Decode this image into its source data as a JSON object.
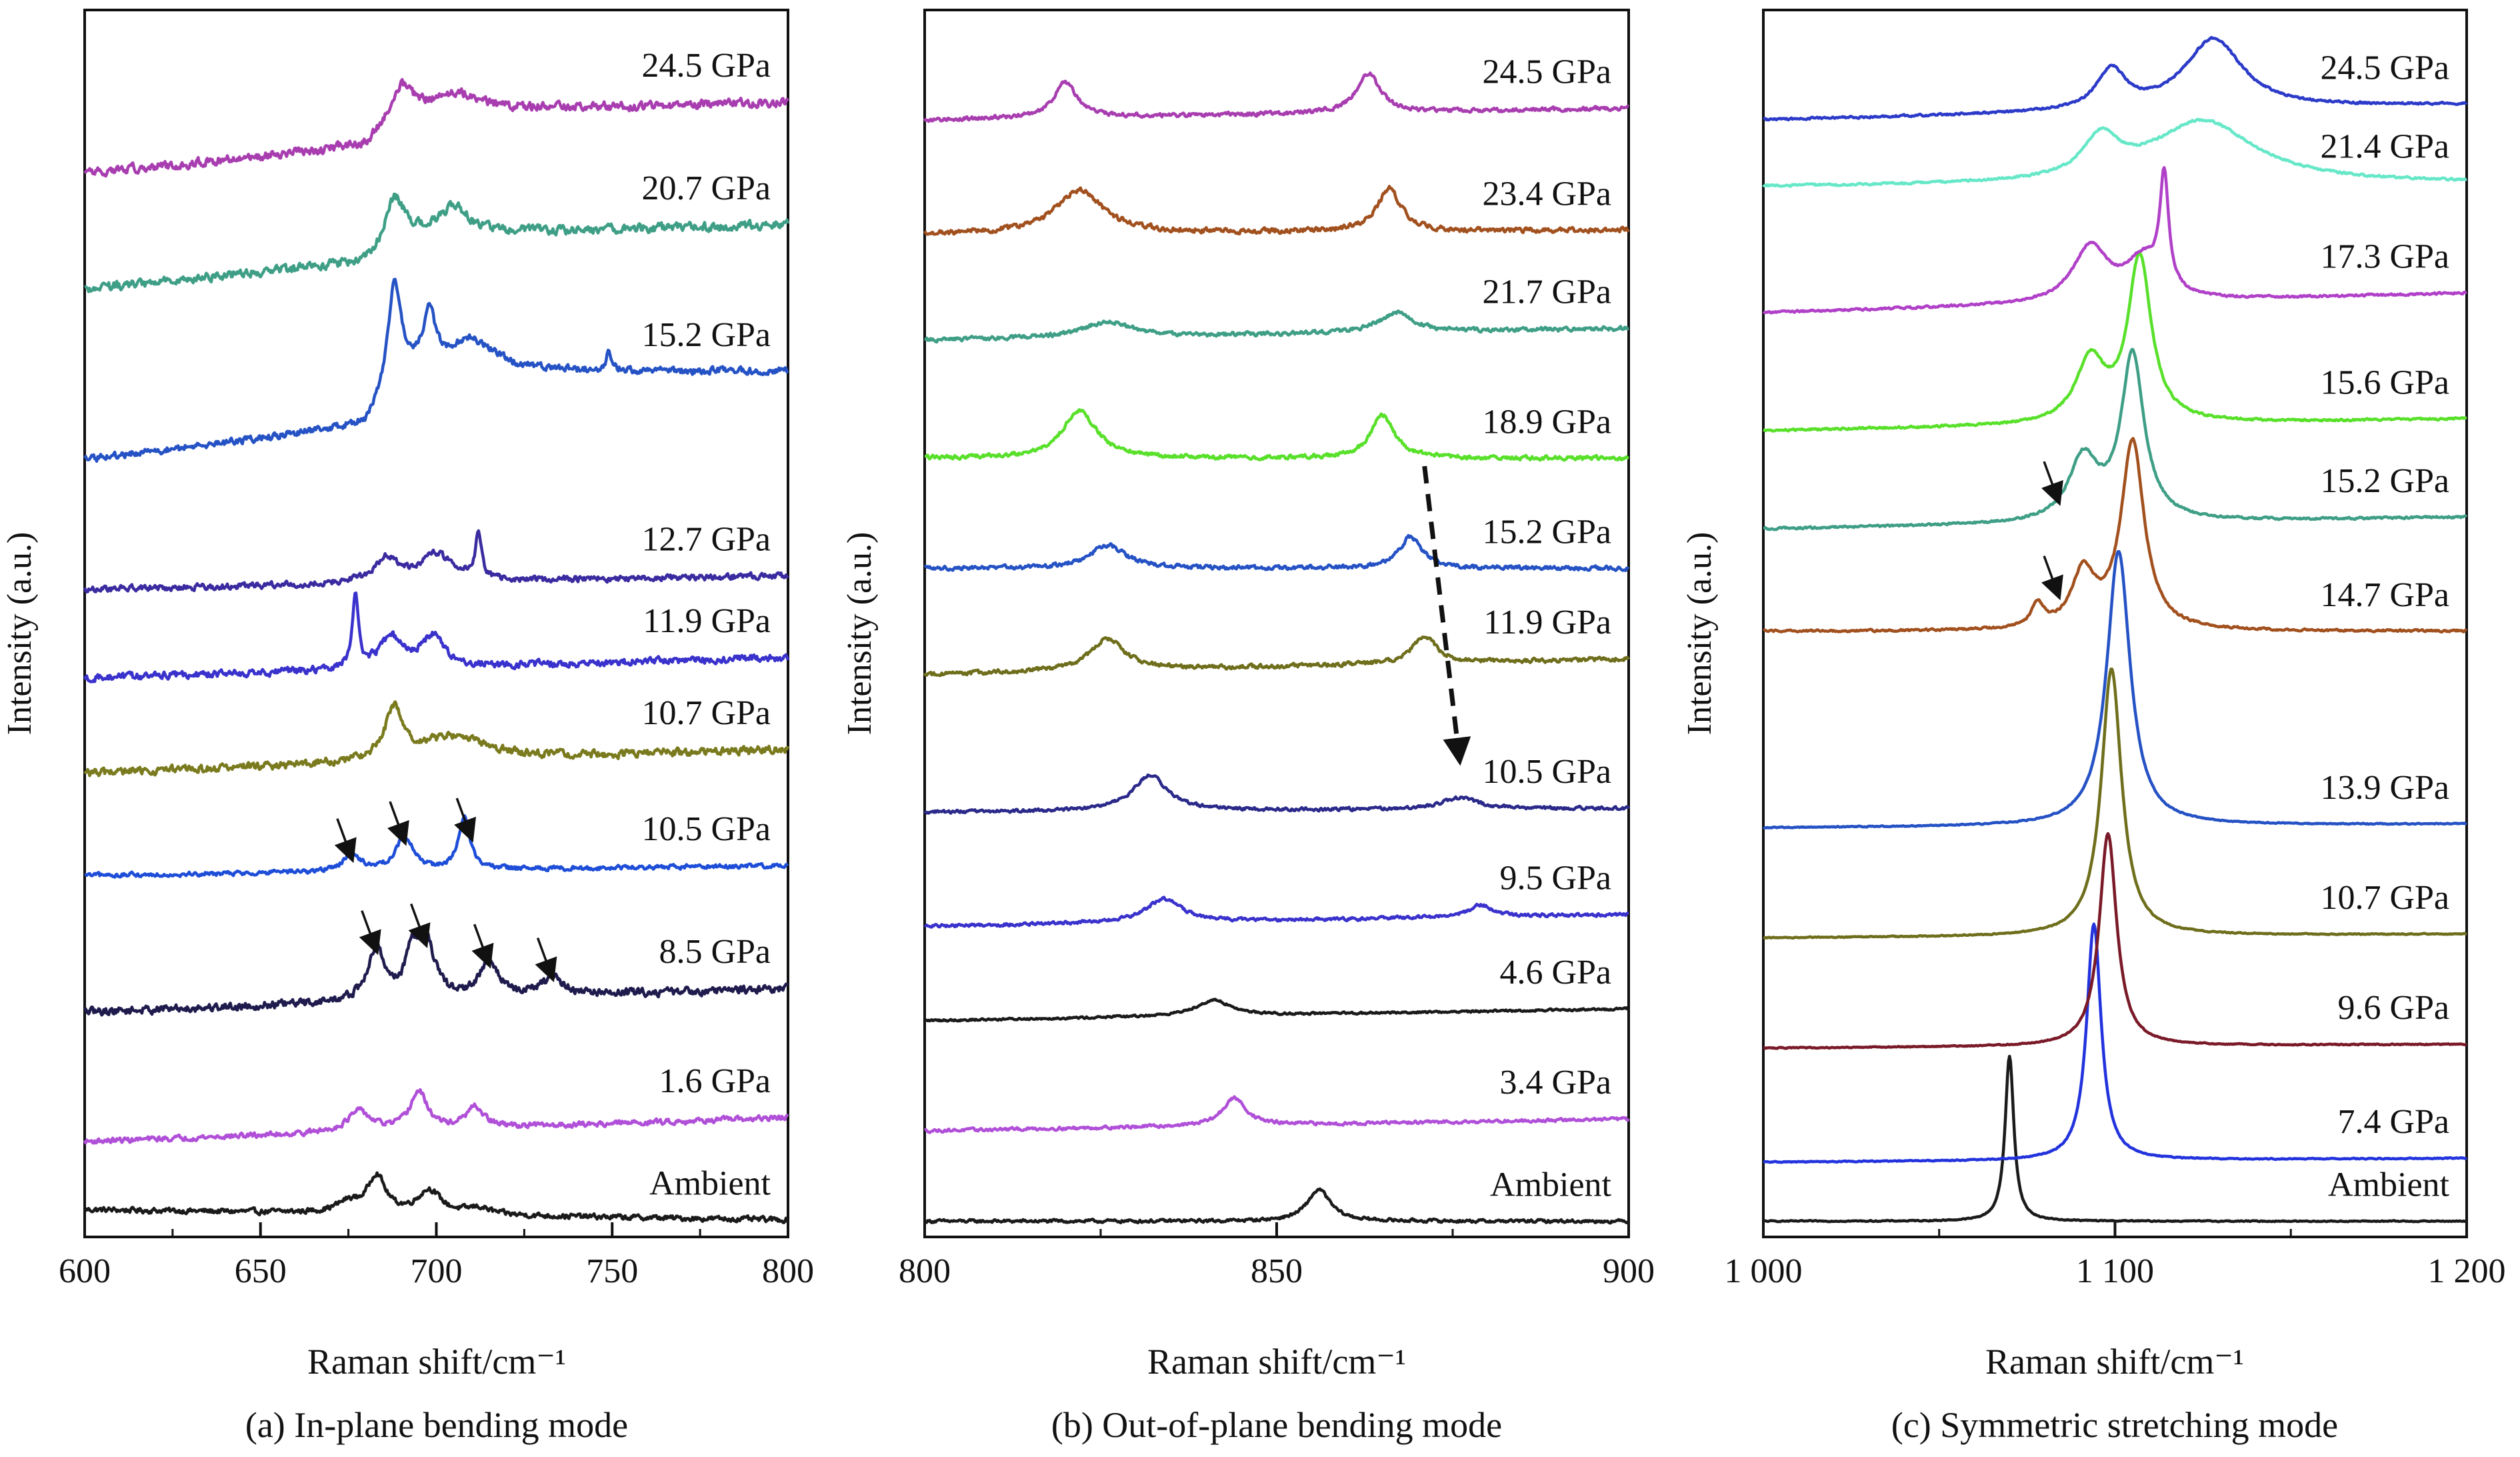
{
  "figure": {
    "ylabel": "Intensity (a.u.)",
    "xlabel": "Raman shift/cm⁻¹"
  },
  "chart_data": [
    {
      "type": "line",
      "caption": "(a) In-plane bending mode",
      "xlabel": "Raman shift/cm⁻¹",
      "ylabel": "Intensity (a.u.)",
      "xlim": [
        600,
        800
      ],
      "xticks": [
        600,
        650,
        700,
        750,
        800
      ],
      "xtick_labels": [
        "600",
        "650",
        "700",
        "750",
        "800"
      ],
      "ylim": [
        -0.4,
        17.6
      ],
      "yticks_shown": false,
      "grid": false,
      "series": [
        {
          "label": "Ambient",
          "color": "#1a1a1a",
          "offset": 0.0,
          "base": [
            [
              600,
              0.0
            ],
            [
              800,
              -0.15
            ]
          ],
          "peaks": [
            [
              675,
              0.15,
              4
            ],
            [
              683,
              0.55,
              3
            ],
            [
              698,
              0.35,
              4
            ],
            [
              712,
              0.1,
              4
            ]
          ],
          "noise": 0.06
        },
        {
          "label": "1.6 GPa",
          "color": "#b04fd8",
          "offset": 1.0,
          "base": [
            [
              600,
              0.0
            ],
            [
              800,
              0.35
            ]
          ],
          "peaks": [
            [
              678,
              0.3,
              4
            ],
            [
              695,
              0.55,
              3
            ],
            [
              711,
              0.3,
              3
            ]
          ],
          "noise": 0.06
        },
        {
          "label": "8.5 GPa",
          "color": "#1f1b4d",
          "offset": 2.9,
          "base": [
            [
              600,
              0.0
            ],
            [
              800,
              0.35
            ]
          ],
          "peaks": [
            [
              683,
              0.75,
              3
            ],
            [
              693,
              0.6,
              2
            ],
            [
              697,
              0.85,
              3
            ],
            [
              715,
              0.55,
              3
            ],
            [
              733,
              0.25,
              4
            ]
          ],
          "noise": 0.09
        },
        {
          "label": "10.5 GPa",
          "color": "#1e4ed8",
          "offset": 4.9,
          "base": [
            [
              600,
              0.0
            ],
            [
              800,
              0.15
            ]
          ],
          "peaks": [
            [
              676,
              0.25,
              3
            ],
            [
              691,
              0.5,
              3
            ],
            [
              708,
              0.75,
              2
            ]
          ],
          "noise": 0.05
        },
        {
          "label": "10.7 GPa",
          "color": "#7a7a1e",
          "offset": 6.4,
          "base": [
            [
              600,
              0.0
            ],
            [
              800,
              0.35
            ]
          ],
          "peaks": [
            [
              688,
              0.75,
              3
            ],
            [
              705,
              0.35,
              12
            ]
          ],
          "noise": 0.09
        },
        {
          "label": "11.9 GPa",
          "color": "#3a32cc",
          "offset": 7.8,
          "base": [
            [
              600,
              0.0
            ],
            [
              800,
              0.3
            ]
          ],
          "peaks": [
            [
              677,
              1.1,
              1
            ],
            [
              687,
              0.45,
              4
            ],
            [
              699,
              0.45,
              4
            ]
          ],
          "noise": 0.08
        },
        {
          "label": "12.7 GPa",
          "color": "#3a2ba0",
          "offset": 9.1,
          "base": [
            [
              600,
              0.0
            ],
            [
              800,
              0.2
            ]
          ],
          "peaks": [
            [
              686,
              0.35,
              4
            ],
            [
              700,
              0.4,
              6
            ],
            [
              712,
              0.7,
              1
            ]
          ],
          "noise": 0.07
        },
        {
          "label": "15.2 GPa",
          "color": "#2552c4",
          "offset": 11.0,
          "base": [
            [
              600,
              0.0
            ],
            [
              680,
              0.5
            ],
            [
              690,
              1.3
            ],
            [
              800,
              1.3
            ]
          ],
          "peaks": [
            [
              688,
              1.4,
              2
            ],
            [
              698,
              0.8,
              2
            ],
            [
              710,
              0.45,
              8
            ],
            [
              749,
              0.25,
              1
            ]
          ],
          "noise": 0.08
        },
        {
          "label": "20.7 GPa",
          "color": "#3e9e86",
          "offset": 13.5,
          "base": [
            [
              600,
              0.0
            ],
            [
              680,
              0.4
            ],
            [
              690,
              0.8
            ],
            [
              800,
              0.95
            ]
          ],
          "peaks": [
            [
              688,
              0.6,
              3
            ],
            [
              705,
              0.4,
              5
            ]
          ],
          "noise": 0.1
        },
        {
          "label": "24.5 GPa",
          "color": "#a83db0",
          "offset": 15.2,
          "base": [
            [
              600,
              0.0
            ],
            [
              680,
              0.4
            ],
            [
              690,
              0.9
            ],
            [
              800,
              1.05
            ]
          ],
          "peaks": [
            [
              690,
              0.35,
              4
            ],
            [
              706,
              0.25,
              8
            ]
          ],
          "noise": 0.1
        }
      ],
      "annotations": [
        {
          "type": "arrow",
          "points_to": [
            676,
            5.15
          ]
        },
        {
          "type": "arrow",
          "points_to": [
            691,
            5.4
          ]
        },
        {
          "type": "arrow",
          "points_to": [
            710,
            5.45
          ]
        },
        {
          "type": "arrow",
          "points_to": [
            683,
            3.8
          ]
        },
        {
          "type": "arrow",
          "points_to": [
            697,
            3.9
          ]
        },
        {
          "type": "arrow",
          "points_to": [
            715,
            3.6
          ]
        },
        {
          "type": "arrow",
          "points_to": [
            733,
            3.4
          ]
        }
      ]
    },
    {
      "type": "line",
      "caption": "(b) Out-of-plane bending mode",
      "xlabel": "Raman shift/cm⁻¹",
      "ylabel": "Intensity (a.u.)",
      "xlim": [
        800,
        900
      ],
      "xticks": [
        800,
        850,
        900
      ],
      "xtick_labels": [
        "800",
        "850",
        "900"
      ],
      "ylim": [
        -0.2,
        15.4
      ],
      "yticks_shown": false,
      "grid": false,
      "series": [
        {
          "label": "Ambient",
          "color": "#1a1a1a",
          "offset": 0.0,
          "base": [
            [
              800,
              0.0
            ],
            [
              900,
              0.0
            ]
          ],
          "peaks": [
            [
              856,
              0.4,
              2
            ]
          ],
          "noise": 0.03
        },
        {
          "label": "3.4 GPa",
          "color": "#b04fd8",
          "offset": 1.15,
          "base": [
            [
              800,
              0.0
            ],
            [
              900,
              0.15
            ]
          ],
          "peaks": [
            [
              844,
              0.35,
              2
            ]
          ],
          "noise": 0.03
        },
        {
          "label": "4.6 GPa",
          "color": "#1a1a1a",
          "offset": 2.55,
          "base": [
            [
              800,
              0.0
            ],
            [
              900,
              0.15
            ]
          ],
          "peaks": [
            [
              841,
              0.2,
              3
            ]
          ],
          "noise": 0.02
        },
        {
          "label": "9.5 GPa",
          "color": "#3a32cc",
          "offset": 3.75,
          "base": [
            [
              800,
              0.0
            ],
            [
              900,
              0.15
            ]
          ],
          "peaks": [
            [
              834,
              0.3,
              3
            ],
            [
              879,
              0.15,
              2
            ]
          ],
          "noise": 0.03
        },
        {
          "label": "10.5 GPa",
          "color": "#2b2a8a",
          "offset": 5.2,
          "base": [
            [
              800,
              0.0
            ],
            [
              900,
              0.05
            ]
          ],
          "peaks": [
            [
              832,
              0.45,
              3
            ],
            [
              876,
              0.15,
              3
            ]
          ],
          "noise": 0.03
        },
        {
          "label": "11.9 GPa",
          "color": "#6e6e1c",
          "offset": 6.95,
          "base": [
            [
              800,
              0.0
            ],
            [
              900,
              0.2
            ]
          ],
          "peaks": [
            [
              826,
              0.4,
              3
            ],
            [
              871,
              0.35,
              2
            ]
          ],
          "noise": 0.04
        },
        {
          "label": "15.2 GPa",
          "color": "#2552c4",
          "offset": 8.3,
          "base": [
            [
              800,
              0.0
            ],
            [
              900,
              0.0
            ]
          ],
          "peaks": [
            [
              826,
              0.3,
              3
            ],
            [
              869,
              0.4,
              2
            ]
          ],
          "noise": 0.04
        },
        {
          "label": "18.9 GPa",
          "color": "#58e02a",
          "offset": 9.7,
          "base": [
            [
              800,
              0.0
            ],
            [
              900,
              0.0
            ]
          ],
          "peaks": [
            [
              822,
              0.6,
              3
            ],
            [
              865,
              0.55,
              2
            ]
          ],
          "noise": 0.04
        },
        {
          "label": "21.7 GPa",
          "color": "#3e9e86",
          "offset": 11.2,
          "base": [
            [
              800,
              0.0
            ],
            [
              900,
              0.15
            ]
          ],
          "peaks": [
            [
              826,
              0.2,
              4
            ],
            [
              867,
              0.25,
              3
            ]
          ],
          "noise": 0.04
        },
        {
          "label": "23.4 GPa",
          "color": "#a1501e",
          "offset": 12.55,
          "base": [
            [
              800,
              0.0
            ],
            [
              900,
              0.05
            ]
          ],
          "peaks": [
            [
              822,
              0.55,
              4
            ],
            [
              866,
              0.55,
              2
            ]
          ],
          "noise": 0.05
        },
        {
          "label": "24.5 GPa",
          "color": "#a83db0",
          "offset": 14.0,
          "base": [
            [
              800,
              0.0
            ],
            [
              900,
              0.15
            ]
          ],
          "peaks": [
            [
              820,
              0.45,
              2
            ],
            [
              863,
              0.5,
              2
            ]
          ],
          "noise": 0.04
        }
      ],
      "annotations": [
        {
          "type": "dashed-arrow",
          "from": [
            871,
            9.6
          ],
          "to": [
            876,
            5.85
          ]
        }
      ]
    },
    {
      "type": "line",
      "caption": "(c) Symmetric stretching mode",
      "xlabel": "Raman shift/cm⁻¹",
      "ylabel": "Intensity (a.u.)",
      "xlim": [
        1000,
        1200
      ],
      "xticks": [
        1000,
        1100,
        1200
      ],
      "xtick_labels": [
        "1 000",
        "1 100",
        "1 200"
      ],
      "ylim": [
        -0.2,
        15.4
      ],
      "yticks_shown": false,
      "grid": false,
      "series": [
        {
          "label": "Ambient",
          "color": "#1a1a1a",
          "offset": 0.0,
          "base": [
            [
              1000,
              0.0
            ],
            [
              1200,
              0.0
            ]
          ],
          "peaks": [
            [
              1070,
              2.1,
              1.5
            ]
          ],
          "noise": 0.01
        },
        {
          "label": "7.4 GPa",
          "color": "#2233dd",
          "offset": 0.75,
          "base": [
            [
              1000,
              0.0
            ],
            [
              1200,
              0.05
            ]
          ],
          "peaks": [
            [
              1094,
              3.0,
              2.5
            ]
          ],
          "noise": 0.01
        },
        {
          "label": "9.6 GPa",
          "color": "#7a1a28",
          "offset": 2.2,
          "base": [
            [
              1000,
              0.0
            ],
            [
              1200,
              0.05
            ]
          ],
          "peaks": [
            [
              1098,
              2.7,
              3
            ]
          ],
          "noise": 0.01
        },
        {
          "label": "10.7 GPa",
          "color": "#6e6e1c",
          "offset": 3.6,
          "base": [
            [
              1000,
              0.0
            ],
            [
              1200,
              0.05
            ]
          ],
          "peaks": [
            [
              1099,
              3.4,
              3.5
            ]
          ],
          "noise": 0.01
        },
        {
          "label": "13.9 GPa",
          "color": "#2552c4",
          "offset": 5.0,
          "base": [
            [
              1000,
              0.0
            ],
            [
              1200,
              0.05
            ]
          ],
          "peaks": [
            [
              1101,
              3.5,
              4
            ]
          ],
          "noise": 0.01
        },
        {
          "label": "14.7 GPa",
          "color": "#a1501e",
          "offset": 7.5,
          "base": [
            [
              1000,
              0.0
            ],
            [
              1200,
              0.0
            ]
          ],
          "peaks": [
            [
              1078,
              0.3,
              2
            ],
            [
              1091,
              0.7,
              4
            ],
            [
              1105,
              2.4,
              4
            ]
          ],
          "noise": 0.02
        },
        {
          "label": "15.2 GPa",
          "color": "#3e9e86",
          "offset": 8.8,
          "base": [
            [
              1000,
              0.0
            ],
            [
              1200,
              0.15
            ]
          ],
          "peaks": [
            [
              1091,
              0.8,
              5
            ],
            [
              1105,
              2.1,
              4
            ]
          ],
          "noise": 0.02
        },
        {
          "label": "15.6 GPa",
          "color": "#58e02a",
          "offset": 10.05,
          "base": [
            [
              1000,
              0.0
            ],
            [
              1200,
              0.15
            ]
          ],
          "peaks": [
            [
              1093,
              0.8,
              5
            ],
            [
              1107,
              2.1,
              4
            ]
          ],
          "noise": 0.02
        },
        {
          "label": "17.3 GPa",
          "color": "#b040c8",
          "offset": 11.55,
          "base": [
            [
              1000,
              0.0
            ],
            [
              1200,
              0.25
            ]
          ],
          "peaks": [
            [
              1093,
              0.7,
              6
            ],
            [
              1114,
              1.4,
              1.5
            ],
            [
              1108,
              0.5,
              6
            ]
          ],
          "noise": 0.02
        },
        {
          "label": "21.4 GPa",
          "color": "#66e8c8",
          "offset": 13.15,
          "base": [
            [
              1000,
              0.0
            ],
            [
              1200,
              0.05
            ]
          ],
          "peaks": [
            [
              1096,
              0.5,
              6
            ],
            [
              1125,
              0.8,
              18
            ]
          ],
          "noise": 0.02
        },
        {
          "label": "24.5 GPa",
          "color": "#2b3ac8",
          "offset": 14.0,
          "base": [
            [
              1000,
              0.0
            ],
            [
              1200,
              0.2
            ]
          ],
          "peaks": [
            [
              1099,
              0.5,
              5
            ],
            [
              1128,
              0.9,
              10
            ]
          ],
          "noise": 0.02
        }
      ],
      "annotations": [
        {
          "type": "arrow",
          "points_to": [
            1084,
            9.15
          ]
        },
        {
          "type": "arrow",
          "points_to": [
            1084,
            7.95
          ]
        }
      ]
    }
  ]
}
